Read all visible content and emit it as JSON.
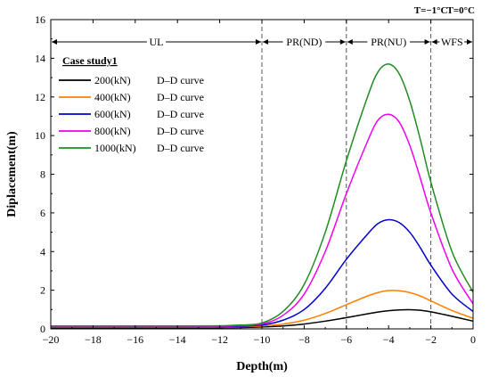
{
  "chart_data": {
    "type": "line",
    "xlabel": "Depth(m)",
    "ylabel": "Diplacement(m)",
    "xlim": [
      -20,
      0
    ],
    "ylim": [
      0,
      16
    ],
    "x_ticks": [
      "-20",
      "-18",
      "-16",
      "-14",
      "-12",
      "-10",
      "-8",
      "-6",
      "-4",
      "-2",
      "0"
    ],
    "y_ticks": [
      "0",
      "2",
      "4",
      "6",
      "8",
      "10",
      "12",
      "14",
      "16"
    ],
    "legend_title": "Case study1",
    "legend_position": "upper-left",
    "region_boundaries": [
      -10,
      -6,
      -2
    ],
    "regions": [
      {
        "label": "UL",
        "from": -20,
        "to": -10
      },
      {
        "label": "PR(ND)",
        "from": -10,
        "to": -6
      },
      {
        "label": "PR(NU)",
        "from": -6,
        "to": -2
      },
      {
        "label": "WFS",
        "from": -2,
        "to": 0
      }
    ],
    "temperature_labels": [
      {
        "text": "T=−1°C",
        "x": -2
      },
      {
        "text": "T=0°C",
        "x": 0
      }
    ],
    "series": [
      {
        "name": "200(kN) D–D curve",
        "load": "200(kN)",
        "curve": "D–D curve",
        "color": "#000000",
        "x": [
          -20,
          -14,
          -12,
          -11,
          -10,
          -9,
          -8,
          -7,
          -6,
          -5,
          -4.5,
          -4,
          -3.5,
          -3,
          -2.5,
          -2,
          -1,
          0
        ],
        "y": [
          0.05,
          0.05,
          0.06,
          0.07,
          0.1,
          0.15,
          0.25,
          0.4,
          0.58,
          0.78,
          0.87,
          0.94,
          0.98,
          0.99,
          0.96,
          0.88,
          0.65,
          0.4
        ]
      },
      {
        "name": "400(kN) D–D curve",
        "load": "400(kN)",
        "curve": "D–D curve",
        "color": "#ff7f00",
        "x": [
          -20,
          -14,
          -12,
          -11,
          -10,
          -9,
          -8,
          -7,
          -6,
          -5,
          -4.5,
          -4,
          -3.5,
          -3,
          -2.5,
          -2,
          -1,
          0
        ],
        "y": [
          0.08,
          0.08,
          0.09,
          0.11,
          0.15,
          0.25,
          0.45,
          0.8,
          1.25,
          1.7,
          1.88,
          1.98,
          1.97,
          1.88,
          1.7,
          1.45,
          0.95,
          0.55
        ]
      },
      {
        "name": "600(kN) D–D curve",
        "load": "600(kN)",
        "curve": "D–D curve",
        "color": "#0000cc",
        "x": [
          -20,
          -14,
          -12,
          -11,
          -10,
          -9,
          -8,
          -7,
          -6,
          -5,
          -4.5,
          -4,
          -3.5,
          -3,
          -2.5,
          -2,
          -1,
          0
        ],
        "y": [
          0.1,
          0.1,
          0.11,
          0.13,
          0.2,
          0.45,
          1.0,
          2.1,
          3.6,
          4.9,
          5.45,
          5.65,
          5.5,
          5.0,
          4.2,
          3.3,
          1.8,
          0.9
        ]
      },
      {
        "name": "800(kN) D–D curve",
        "load": "800(kN)",
        "curve": "D–D curve",
        "color": "#ee00ee",
        "x": [
          -20,
          -14,
          -12,
          -11,
          -10,
          -9,
          -8,
          -7,
          -6,
          -5,
          -4.5,
          -4,
          -3.5,
          -3,
          -2.5,
          -2,
          -1,
          0
        ],
        "y": [
          0.12,
          0.12,
          0.13,
          0.16,
          0.25,
          0.7,
          1.8,
          4.0,
          7.0,
          9.7,
          10.8,
          11.1,
          10.7,
          9.5,
          7.8,
          6.0,
          3.1,
          1.3
        ]
      },
      {
        "name": "1000(kN) D–D curve",
        "load": "1000(kN)",
        "curve": "D–D curve",
        "color": "#228b22",
        "x": [
          -20,
          -14,
          -12,
          -11,
          -10,
          -9,
          -8,
          -7,
          -6,
          -5,
          -4.5,
          -4,
          -3.5,
          -3,
          -2.5,
          -2,
          -1,
          0
        ],
        "y": [
          0.15,
          0.15,
          0.16,
          0.2,
          0.3,
          0.9,
          2.3,
          5.0,
          8.7,
          12.0,
          13.3,
          13.7,
          13.2,
          11.8,
          9.8,
          7.6,
          4.0,
          1.9
        ]
      }
    ]
  }
}
